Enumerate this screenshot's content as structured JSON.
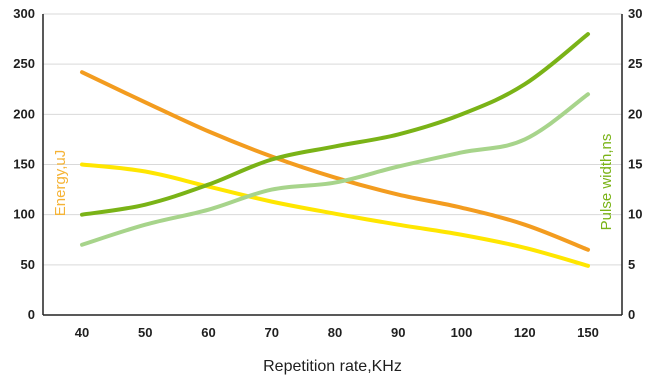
{
  "chart_data": {
    "type": "line",
    "xlabel": "Repetition rate,KHz",
    "ylabel_left": "Energy,uJ",
    "ylabel_right": "Pulse width,ns",
    "categories": [
      "40",
      "50",
      "60",
      "70",
      "80",
      "90",
      "100",
      "120",
      "150"
    ],
    "ylim_left": [
      0,
      300
    ],
    "ylim_right": [
      0,
      30
    ],
    "yticks_left": [
      "0",
      "50",
      "100",
      "150",
      "200",
      "250",
      "300"
    ],
    "yticks_right": [
      "0",
      "5",
      "10",
      "15",
      "20",
      "25",
      "30"
    ],
    "grid": true,
    "series": [
      {
        "axis": "left",
        "color": "#f39c1f",
        "values": [
          242,
          212,
          183,
          158,
          137,
          120,
          107,
          90,
          65
        ]
      },
      {
        "axis": "left",
        "color": "#ffe600",
        "values": [
          150,
          143,
          128,
          113,
          101,
          90,
          80,
          67,
          49
        ]
      },
      {
        "axis": "right",
        "color": "#7ab317",
        "values": [
          10,
          11,
          13,
          15.5,
          16.8,
          18,
          20,
          23,
          28
        ]
      },
      {
        "axis": "right",
        "color": "#a7d48b",
        "values": [
          7,
          9,
          10.5,
          12.5,
          13.2,
          14.8,
          16.2,
          17.5,
          22
        ]
      }
    ],
    "colors": {
      "energy_title": "#f5b335",
      "pulse_title": "#7ab317",
      "grid": "#d9d9d9",
      "axis": "#222222"
    }
  }
}
